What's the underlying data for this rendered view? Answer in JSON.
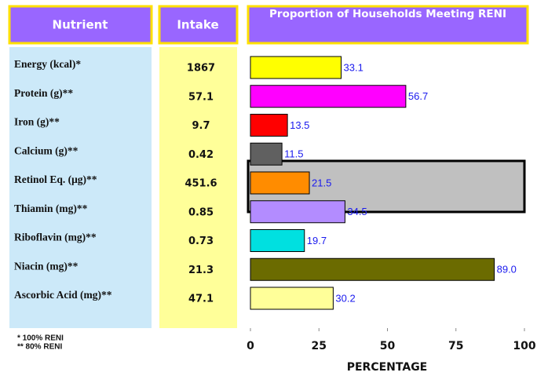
{
  "headers": {
    "nutrient": "Nutrient",
    "intake": "Intake"
  },
  "intake": [
    1867,
    57.1,
    9.7,
    0.42,
    451.6,
    0.85,
    0.73,
    21.3,
    47.1
  ],
  "footnotes": [
    "* 100% RENI",
    "** 80% RENI"
  ],
  "chart_data": {
    "type": "bar",
    "orientation": "horizontal",
    "title": "Proportion of Households Meeting RENI",
    "xlabel": "PERCENTAGE",
    "categories": [
      "Energy (kcal)*",
      "Protein (g)**",
      "Iron (g)**",
      "Calcium (g)**",
      "Retinol Eq. (μg)**",
      "Thiamin (mg)**",
      "Riboflavin (mg)**",
      "Niacin (mg)**",
      "Ascorbic Acid (mg)**"
    ],
    "values": [
      33.1,
      56.7,
      13.5,
      11.5,
      21.5,
      34.5,
      19.7,
      89,
      30.2
    ],
    "value_labels": [
      "33.1",
      "56.7",
      "13.5",
      "11.5",
      "21.5",
      "34.5",
      "19.7",
      "89.0",
      "30.2"
    ],
    "colors": [
      "#ffff00",
      "#ff00ff",
      "#ff0000",
      "#606060",
      "#ff8c00",
      "#b38cff",
      "#00e0e0",
      "#6b6b00",
      "#ffff99"
    ],
    "xlim": [
      0,
      100
    ],
    "xticks": [
      0,
      25,
      50,
      75,
      100
    ]
  }
}
